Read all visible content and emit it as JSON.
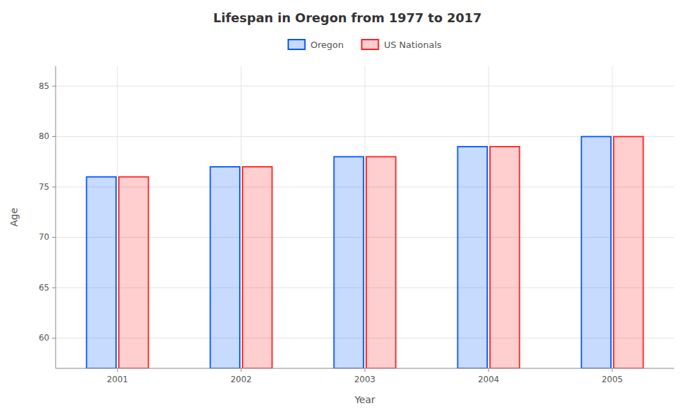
{
  "chart_data": {
    "type": "bar",
    "title": "Lifespan in Oregon from 1977 to 2017",
    "xlabel": "Year",
    "ylabel": "Age",
    "categories": [
      "2001",
      "2002",
      "2003",
      "2004",
      "2005"
    ],
    "series": [
      {
        "name": "Oregon",
        "color": "#0055ff",
        "values": [
          76,
          77,
          78,
          79,
          80
        ]
      },
      {
        "name": "US Nationals",
        "color": "#ff2020",
        "values": [
          76,
          77,
          78,
          79,
          80
        ]
      }
    ],
    "ylim": [
      57,
      87
    ],
    "yticks": [
      60,
      65,
      70,
      75,
      80,
      85
    ],
    "grid": true,
    "legend": "top"
  }
}
